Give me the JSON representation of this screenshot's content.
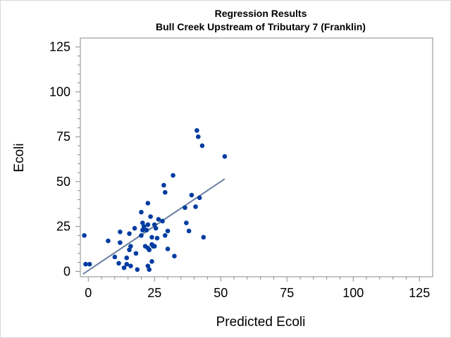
{
  "title": "Regression Results",
  "subtitle": "Bull Creek  Upstream of Tributary 7 (Franklin)",
  "chart_data": {
    "type": "scatter",
    "title": "Regression Results",
    "subtitle": "Bull Creek  Upstream of Tributary 7 (Franklin)",
    "xlabel": "Predicted Ecoli",
    "ylabel": "Ecoli",
    "xlim": [
      -3,
      130
    ],
    "ylim": [
      -3,
      130
    ],
    "xticks": [
      0,
      25,
      50,
      75,
      100,
      125
    ],
    "yticks": [
      0,
      25,
      50,
      75,
      100,
      125
    ],
    "grid": false,
    "point_color": "#003ca0",
    "line_color": "#6a7fa0",
    "points": [
      [
        -1.5,
        20
      ],
      [
        -1,
        4
      ],
      [
        0.5,
        4
      ],
      [
        7.5,
        17
      ],
      [
        10,
        8
      ],
      [
        11.5,
        4.5
      ],
      [
        12,
        16
      ],
      [
        12,
        22
      ],
      [
        13.5,
        2
      ],
      [
        14.5,
        7.5
      ],
      [
        14.5,
        4
      ],
      [
        15.5,
        12
      ],
      [
        15.5,
        21
      ],
      [
        16,
        14
      ],
      [
        16,
        3
      ],
      [
        17.5,
        24
      ],
      [
        18,
        10
      ],
      [
        18.5,
        1
      ],
      [
        20,
        20
      ],
      [
        20,
        33
      ],
      [
        20.5,
        23
      ],
      [
        20.5,
        27
      ],
      [
        21,
        25
      ],
      [
        21.5,
        14
      ],
      [
        22,
        23
      ],
      [
        22.5,
        13
      ],
      [
        22.5,
        26
      ],
      [
        22.5,
        38
      ],
      [
        22.5,
        3
      ],
      [
        23,
        1
      ],
      [
        23,
        12
      ],
      [
        23.5,
        30.5
      ],
      [
        24,
        5.5
      ],
      [
        24,
        15
      ],
      [
        24,
        19
      ],
      [
        24.5,
        14
      ],
      [
        25,
        14
      ],
      [
        25,
        26
      ],
      [
        25.5,
        24
      ],
      [
        26,
        18.5
      ],
      [
        26.5,
        29
      ],
      [
        28,
        28
      ],
      [
        28.5,
        48
      ],
      [
        29,
        44
      ],
      [
        29,
        20
      ],
      [
        30,
        12.5
      ],
      [
        30,
        22.5
      ],
      [
        32,
        53.5
      ],
      [
        32.5,
        8.5
      ],
      [
        36.5,
        35.5
      ],
      [
        37,
        27
      ],
      [
        38,
        22.5
      ],
      [
        39,
        42.5
      ],
      [
        40.5,
        36
      ],
      [
        41,
        78.5
      ],
      [
        41.5,
        75
      ],
      [
        42,
        41
      ],
      [
        43,
        70
      ],
      [
        43.5,
        19
      ],
      [
        51.5,
        64
      ]
    ],
    "regression_line": {
      "x": [
        -2,
        51.5
      ],
      "y": [
        -1.5,
        51.5
      ]
    }
  }
}
